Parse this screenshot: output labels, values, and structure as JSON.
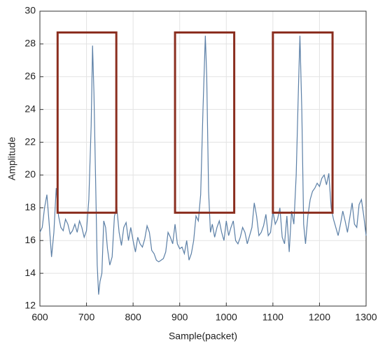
{
  "chart_data": {
    "type": "line",
    "x_label": "Sample(packet)",
    "y_label": "Amplitude",
    "x": [
      600,
      605,
      610,
      615,
      620,
      625,
      630,
      635,
      640,
      645,
      650,
      655,
      660,
      665,
      670,
      675,
      680,
      685,
      690,
      695,
      700,
      705,
      710,
      713,
      716,
      720,
      723,
      726,
      729,
      733,
      737,
      741,
      745,
      750,
      755,
      760,
      765,
      770,
      775,
      780,
      785,
      790,
      795,
      800,
      805,
      810,
      815,
      820,
      825,
      830,
      835,
      840,
      845,
      850,
      855,
      860,
      865,
      870,
      875,
      880,
      885,
      890,
      895,
      900,
      905,
      910,
      915,
      920,
      925,
      930,
      935,
      940,
      945,
      950,
      955,
      958,
      962,
      966,
      970,
      975,
      980,
      985,
      990,
      995,
      1000,
      1005,
      1010,
      1015,
      1020,
      1025,
      1030,
      1035,
      1040,
      1045,
      1050,
      1055,
      1060,
      1065,
      1070,
      1075,
      1080,
      1085,
      1090,
      1095,
      1100,
      1105,
      1110,
      1115,
      1120,
      1125,
      1130,
      1135,
      1140,
      1145,
      1150,
      1155,
      1158,
      1162,
      1166,
      1170,
      1175,
      1180,
      1185,
      1190,
      1195,
      1200,
      1205,
      1210,
      1215,
      1220,
      1225,
      1230,
      1235,
      1240,
      1245,
      1250,
      1255,
      1260,
      1265,
      1270,
      1275,
      1280,
      1285,
      1290,
      1295,
      1300
    ],
    "series": [
      {
        "color": "#5b7fa6",
        "values": [
          16.5,
          16.8,
          18.0,
          18.8,
          17.0,
          15.0,
          16.5,
          19.2,
          17.5,
          16.8,
          16.6,
          17.3,
          17.0,
          16.4,
          16.6,
          17.0,
          16.5,
          17.2,
          16.8,
          16.2,
          16.6,
          18.5,
          23.0,
          27.9,
          25.0,
          19.0,
          14.5,
          12.7,
          13.5,
          14.0,
          17.2,
          16.8,
          15.5,
          14.5,
          15.0,
          17.5,
          18.0,
          16.5,
          15.7,
          16.8,
          17.1,
          16.0,
          16.8,
          16.0,
          15.3,
          16.2,
          15.8,
          15.6,
          16.1,
          16.9,
          16.5,
          15.4,
          15.2,
          14.8,
          14.7,
          14.8,
          14.9,
          15.3,
          16.5,
          16.2,
          15.8,
          17.0,
          15.8,
          15.5,
          15.6,
          15.2,
          16.0,
          14.8,
          15.2,
          16.0,
          17.5,
          17.2,
          18.8,
          24.0,
          28.5,
          26.0,
          19.0,
          16.5,
          17.0,
          16.2,
          16.8,
          17.2,
          16.5,
          16.0,
          17.2,
          16.3,
          16.8,
          17.2,
          16.0,
          15.8,
          16.2,
          16.8,
          16.5,
          15.8,
          16.3,
          16.8,
          18.3,
          17.5,
          16.3,
          16.5,
          16.9,
          17.6,
          16.3,
          16.5,
          17.8,
          17.0,
          17.3,
          18.0,
          16.2,
          15.8,
          17.5,
          15.3,
          17.8,
          17.0,
          20.0,
          25.5,
          28.5,
          24.0,
          17.0,
          15.8,
          17.5,
          18.5,
          19.0,
          19.2,
          19.5,
          19.3,
          19.8,
          20.0,
          19.4,
          20.1,
          18.0,
          17.3,
          16.8,
          16.3,
          17.0,
          17.8,
          17.2,
          16.5,
          17.4,
          18.3,
          17.0,
          16.8,
          18.2,
          18.5,
          17.5,
          16.3
        ]
      }
    ],
    "xlim": [
      600,
      1300
    ],
    "ylim": [
      12,
      30
    ],
    "xticks": [
      600,
      700,
      800,
      900,
      1000,
      1100,
      1200,
      1300
    ],
    "yticks": [
      12,
      14,
      16,
      18,
      20,
      22,
      24,
      26,
      28,
      30
    ],
    "grid": true,
    "box_color": "#8b2e1f",
    "boxes": [
      {
        "x": [
          638,
          764
        ],
        "y": [
          17.7,
          28.7
        ]
      },
      {
        "x": [
          890,
          1017
        ],
        "y": [
          17.7,
          28.7
        ]
      },
      {
        "x": [
          1100,
          1228
        ],
        "y": [
          17.7,
          28.7
        ]
      }
    ]
  }
}
